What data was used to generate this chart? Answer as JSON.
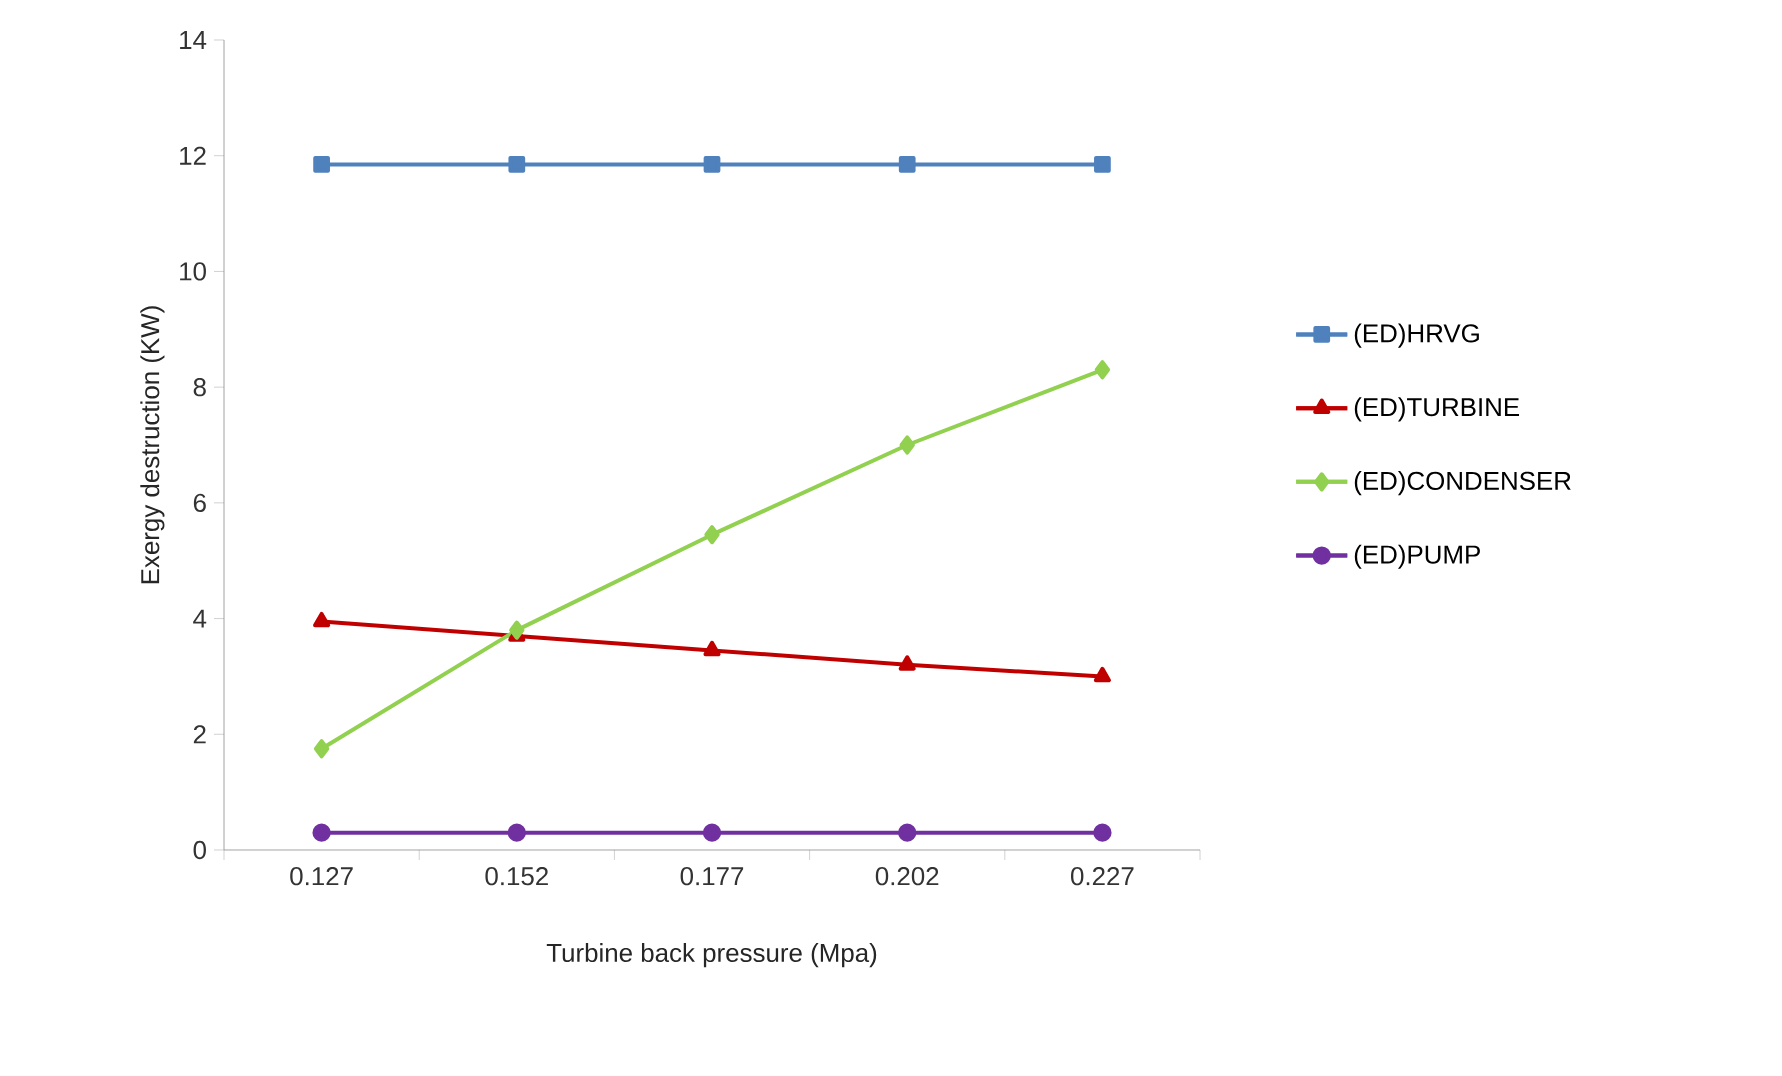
{
  "chart_data": {
    "type": "line",
    "xlabel": "Turbine back pressure (Mpa)",
    "ylabel": "Exergy destruction (KW)",
    "categories": [
      "0.127",
      "0.152",
      "0.177",
      "0.202",
      "0.227"
    ],
    "series": [
      {
        "name": "(ED)HRVG",
        "color": "#4f81bd",
        "marker": "square",
        "values": [
          11.85,
          11.85,
          11.85,
          11.85,
          11.85
        ]
      },
      {
        "name": "(ED)TURBINE",
        "color": "#c00000",
        "marker": "triangle",
        "values": [
          3.95,
          3.7,
          3.45,
          3.2,
          3.0
        ]
      },
      {
        "name": "(ED)CONDENSER",
        "color": "#92d050",
        "marker": "diamond",
        "values": [
          1.75,
          3.8,
          5.45,
          7.0,
          8.3
        ]
      },
      {
        "name": "(ED)PUMP",
        "color": "#7030a0",
        "marker": "circle",
        "values": [
          0.3,
          0.3,
          0.3,
          0.3,
          0.3
        ]
      }
    ],
    "ylim": [
      0,
      14
    ],
    "yticks": [
      0,
      2,
      4,
      6,
      8,
      10,
      12,
      14
    ],
    "grid": false,
    "legend": "right",
    "line_style": "solid"
  }
}
